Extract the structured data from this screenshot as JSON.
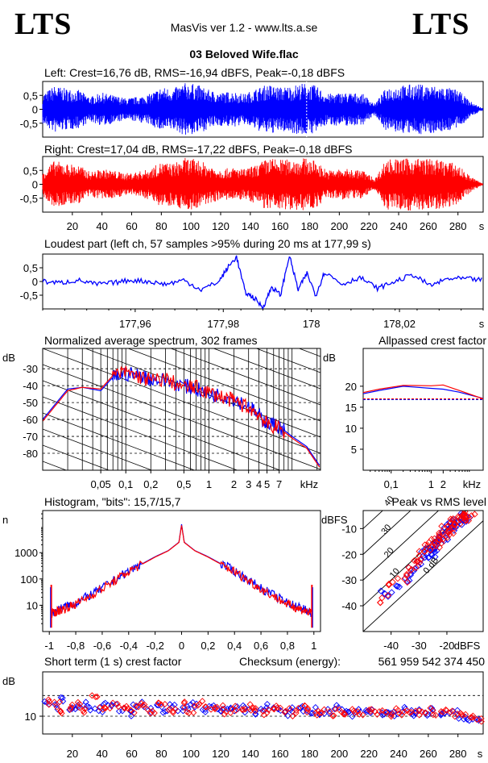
{
  "header": {
    "logo_left": "LTS",
    "logo_right": "LTS",
    "app_title": "MasVis ver 1.2 - www.lts.a.se",
    "file_title": "03 Beloved Wife.flac"
  },
  "colors": {
    "left": "#0000ff",
    "right": "#ff0000",
    "axis": "#000000"
  },
  "chart_data": [
    {
      "id": "waveform-left",
      "type": "line",
      "title": "Left: Crest=16,76 dB, RMS=-16,94 dBFS, Peak=-0,18 dBFS",
      "ylim": [
        -1,
        1
      ],
      "y_ticks": [
        {
          "v": 0.5,
          "label": "0,5"
        },
        {
          "v": 0,
          "label": "0"
        },
        {
          "v": -0.5,
          "label": "-0,5"
        }
      ],
      "xlim": [
        0,
        297
      ],
      "envelope_seconds": [
        0,
        8,
        16,
        24,
        32,
        40,
        48,
        56,
        64,
        72,
        80,
        88,
        96,
        104,
        112,
        120,
        128,
        136,
        144,
        152,
        160,
        168,
        176,
        184,
        192,
        200,
        208,
        216,
        224,
        232,
        240,
        248,
        256,
        264,
        272,
        280,
        288,
        296
      ],
      "envelope_amplitude": [
        0.55,
        0.85,
        0.75,
        0.7,
        0.45,
        0.6,
        0.5,
        0.4,
        0.45,
        0.55,
        0.8,
        0.75,
        0.95,
        0.9,
        0.7,
        0.6,
        0.65,
        0.55,
        0.75,
        0.9,
        0.8,
        0.85,
        0.95,
        0.85,
        0.55,
        0.6,
        0.6,
        0.55,
        0.2,
        0.8,
        0.85,
        0.9,
        0.9,
        0.85,
        0.8,
        0.7,
        0.3,
        0.05
      ]
    },
    {
      "id": "waveform-right",
      "type": "line",
      "title": "Right: Crest=17,04 dB, RMS=-17,22 dBFS, Peak=-0,18 dBFS",
      "ylim": [
        -1,
        1
      ],
      "y_ticks": [
        {
          "v": 0.5,
          "label": "0,5"
        },
        {
          "v": 0,
          "label": "0"
        },
        {
          "v": -0.5,
          "label": "-0,5"
        }
      ],
      "xlim": [
        0,
        297
      ],
      "x_ticks": [
        20,
        40,
        60,
        80,
        100,
        120,
        140,
        160,
        180,
        200,
        220,
        240,
        260,
        280
      ],
      "x_unit": "s",
      "envelope_seconds": [
        0,
        8,
        16,
        24,
        32,
        40,
        48,
        56,
        64,
        72,
        80,
        88,
        96,
        104,
        112,
        120,
        128,
        136,
        144,
        152,
        160,
        168,
        176,
        184,
        192,
        200,
        208,
        216,
        224,
        232,
        240,
        248,
        256,
        264,
        272,
        280,
        288,
        296
      ],
      "envelope_amplitude": [
        0.5,
        0.85,
        0.75,
        0.7,
        0.45,
        0.55,
        0.5,
        0.4,
        0.45,
        0.55,
        0.8,
        0.75,
        0.95,
        0.9,
        0.7,
        0.55,
        0.6,
        0.55,
        0.7,
        0.95,
        0.9,
        0.9,
        0.95,
        0.85,
        0.5,
        0.55,
        0.55,
        0.5,
        0.2,
        0.95,
        0.9,
        0.95,
        0.95,
        0.9,
        0.85,
        0.7,
        0.3,
        0.05
      ]
    },
    {
      "id": "loudest-part",
      "type": "line",
      "title": "Loudest part (left  ch, 57 samples >95% during 20 ms at 177,99 s)",
      "ylim": [
        -1,
        1
      ],
      "y_ticks": [
        {
          "v": 0.5,
          "label": "0,5"
        },
        {
          "v": 0,
          "label": "0"
        },
        {
          "v": -0.5,
          "label": "-0,5"
        }
      ],
      "xlim": [
        177.939,
        178.039
      ],
      "x_ticks": [
        {
          "v": 177.96,
          "label": "177,96"
        },
        {
          "v": 177.98,
          "label": "177,98"
        },
        {
          "v": 178,
          "label": "178"
        },
        {
          "v": 178.02,
          "label": "178,02"
        }
      ],
      "x_unit": "s",
      "x": [
        177.939,
        177.943,
        177.947,
        177.951,
        177.955,
        177.959,
        177.963,
        177.967,
        177.971,
        177.975,
        177.979,
        177.981,
        177.983,
        177.985,
        177.987,
        177.989,
        177.991,
        177.993,
        177.995,
        177.997,
        177.999,
        178.001,
        178.003,
        178.007,
        178.011,
        178.015,
        178.019,
        178.023,
        178.027,
        178.031,
        178.035,
        178.039
      ],
      "y": [
        0.0,
        -0.05,
        0.05,
        -0.1,
        -0.05,
        0.05,
        0.0,
        -0.1,
        0.05,
        -0.3,
        0.0,
        0.5,
        0.9,
        -0.4,
        -0.6,
        -0.95,
        -0.2,
        -0.5,
        0.95,
        -0.3,
        0.3,
        -0.5,
        0.35,
        -0.1,
        0.15,
        -0.25,
        0.0,
        0.25,
        -0.15,
        0.1,
        0.1,
        0.05
      ]
    },
    {
      "id": "avg-spectrum",
      "type": "line",
      "title": "Normalized average spectrum, 302 frames",
      "ylabel": "dB",
      "ylim": [
        -90,
        -18
      ],
      "y_ticks": [
        -30,
        -40,
        -50,
        -60,
        -70,
        -80
      ],
      "xlim": [
        0.01,
        22
      ],
      "x_log": true,
      "x_ticks": [
        {
          "v": 0.05,
          "label": "0,05"
        },
        {
          "v": 0.1,
          "label": "0,1"
        },
        {
          "v": 0.2,
          "label": "0,2"
        },
        {
          "v": 0.5,
          "label": "0,5"
        },
        {
          "v": 1,
          "label": "1"
        },
        {
          "v": 2,
          "label": "2"
        },
        {
          "v": 3,
          "label": "3"
        },
        {
          "v": 4,
          "label": "4"
        },
        {
          "v": 5,
          "label": "5"
        },
        {
          "v": 7,
          "label": "7"
        }
      ],
      "x_unit": "kHz",
      "x": [
        0.01,
        0.02,
        0.03,
        0.05,
        0.07,
        0.1,
        0.15,
        0.2,
        0.3,
        0.5,
        0.7,
        1,
        1.5,
        2,
        3,
        4,
        5,
        7,
        10,
        15,
        22
      ],
      "series": [
        {
          "name": "",
          "color_key": "left",
          "values": [
            -60,
            -42,
            -41,
            -43,
            -35,
            -33,
            -34,
            -36,
            -37,
            -40,
            -42,
            -45,
            -46,
            -48,
            -52,
            -58,
            -62,
            -64,
            -70,
            -76,
            -88
          ]
        },
        {
          "name": "",
          "color_key": "right",
          "values": [
            -61,
            -43,
            -41,
            -42,
            -34,
            -32,
            -35,
            -37,
            -36,
            -41,
            -41,
            -44,
            -47,
            -49,
            -53,
            -57,
            -63,
            -65,
            -71,
            -77,
            -89
          ]
        }
      ]
    },
    {
      "id": "allpassed-crest",
      "type": "line",
      "title": "Allpassed crest factor",
      "ylabel": "dB",
      "ylim": [
        0,
        29
      ],
      "y_ticks": [
        20,
        15,
        10,
        5
      ],
      "xlim": [
        0.02,
        20
      ],
      "x_log": true,
      "x_ticks": [
        {
          "v": 0.1,
          "label": "0,1"
        },
        {
          "v": 1,
          "label": "1"
        },
        {
          "v": 2,
          "label": "2"
        }
      ],
      "x_unit": "kHz",
      "dashed_levels": {
        "left": 16.8,
        "right": 17.0
      },
      "x": [
        0.02,
        0.05,
        0.2,
        1,
        2,
        5,
        20
      ],
      "series": [
        {
          "name": "",
          "color_key": "left",
          "values": [
            18.2,
            19.0,
            20.0,
            19.5,
            19.3,
            18.6,
            17.1
          ]
        },
        {
          "name": "",
          "color_key": "right",
          "values": [
            18.5,
            19.3,
            20.2,
            20.1,
            20.3,
            19.0,
            17.0
          ]
        }
      ]
    },
    {
      "id": "histogram",
      "type": "line",
      "title": "Histogram, \"bits\": 15,7/15,7",
      "ylabel": "n",
      "y_log": true,
      "ylim": [
        1,
        40000
      ],
      "y_ticks": [
        {
          "v": 1000,
          "label": "1000"
        },
        {
          "v": 100,
          "label": "100"
        },
        {
          "v": 10,
          "label": "10"
        }
      ],
      "xlim": [
        -1.05,
        1.05
      ],
      "x_ticks": [
        {
          "v": -1,
          "label": "-1"
        },
        {
          "v": -0.8,
          "label": "-0,8"
        },
        {
          "v": -0.6,
          "label": "-0,6"
        },
        {
          "v": -0.4,
          "label": "-0,4"
        },
        {
          "v": -0.2,
          "label": "-0,2"
        },
        {
          "v": 0,
          "label": "0"
        },
        {
          "v": 0.2,
          "label": "0,2"
        },
        {
          "v": 0.4,
          "label": "0,4"
        },
        {
          "v": 0.6,
          "label": "0,6"
        },
        {
          "v": 0.8,
          "label": "0,8"
        },
        {
          "v": 1,
          "label": "1"
        }
      ],
      "x": [
        -0.98,
        -0.9,
        -0.8,
        -0.6,
        -0.4,
        -0.2,
        -0.1,
        -0.02,
        0,
        0.02,
        0.1,
        0.2,
        0.4,
        0.6,
        0.8,
        0.9,
        0.98
      ],
      "series": [
        {
          "name": "",
          "color_key": "left",
          "values": [
            5,
            8,
            12,
            45,
            200,
            700,
            1200,
            2500,
            12000,
            2500,
            1200,
            700,
            200,
            45,
            12,
            8,
            5
          ]
        },
        {
          "name": "",
          "color_key": "right",
          "values": [
            5,
            7,
            11,
            42,
            190,
            680,
            1180,
            2450,
            11000,
            2450,
            1180,
            680,
            190,
            42,
            11,
            7,
            5
          ]
        }
      ],
      "edge_spikes": {
        "left_value": 60,
        "right_value": 60
      }
    },
    {
      "id": "peak-vs-rms",
      "type": "scatter",
      "title": "Peak vs RMS level",
      "ylabel": "dBFS",
      "xlabel": "dBFS",
      "xlim": [
        -50,
        -7
      ],
      "ylim": [
        -50,
        -3
      ],
      "x_ticks": [
        -40,
        -30,
        -20
      ],
      "y_ticks": [
        -10,
        -20,
        -30,
        -40
      ],
      "crest_lines": [
        {
          "v": 0,
          "label": "0 dB"
        },
        {
          "v": 10,
          "label": "10"
        },
        {
          "v": 20,
          "label": "20"
        },
        {
          "v": 30,
          "label": "30"
        },
        {
          "v": 40,
          "label": "40"
        }
      ],
      "series": [
        {
          "name": "",
          "color_key": "left",
          "x": [
            -42,
            -38,
            -35,
            -32,
            -30,
            -28,
            -27,
            -26,
            -25,
            -24,
            -23,
            -22,
            -21,
            -20,
            -19,
            -18,
            -17,
            -16,
            -15,
            -14,
            -13
          ],
          "y": [
            -36,
            -33,
            -29,
            -26,
            -24,
            -21,
            -20,
            -19,
            -18,
            -16,
            -15,
            -14,
            -13,
            -11,
            -10,
            -9,
            -8,
            -7,
            -7,
            -6,
            -5
          ]
        },
        {
          "name": "",
          "color_key": "right",
          "x": [
            -43,
            -39,
            -36,
            -33,
            -31,
            -29,
            -27,
            -25,
            -24,
            -23,
            -22,
            -21,
            -20,
            -19,
            -18,
            -17,
            -16,
            -15,
            -14,
            -13,
            -12
          ],
          "y": [
            -37,
            -31,
            -29,
            -25,
            -22,
            -20,
            -18,
            -17,
            -16,
            -14,
            -13,
            -12,
            -11,
            -10,
            -9,
            -8,
            -7,
            -6,
            -6,
            -5,
            -5
          ]
        }
      ]
    },
    {
      "id": "short-term-crest",
      "type": "scatter",
      "title": "Short term (1 s) crest factor",
      "checksum_label": "Checksum (energy):",
      "checksum_value": "561 959 542 374 450",
      "ylabel": "dB",
      "ylim": [
        4,
        25
      ],
      "y_ticks": [
        {
          "v": 10,
          "label": "10"
        }
      ],
      "dashed_levels": [
        10,
        17
      ],
      "xlim": [
        0,
        297
      ],
      "x_ticks": [
        20,
        40,
        60,
        80,
        100,
        120,
        140,
        160,
        180,
        200,
        220,
        240,
        260,
        280
      ],
      "x_unit": "s",
      "x": [
        3,
        8,
        13,
        18,
        23,
        28,
        33,
        38,
        43,
        48,
        53,
        58,
        63,
        68,
        73,
        78,
        83,
        88,
        93,
        98,
        103,
        108,
        113,
        118,
        123,
        128,
        133,
        138,
        143,
        148,
        153,
        158,
        163,
        168,
        173,
        178,
        183,
        188,
        193,
        198,
        203,
        208,
        213,
        218,
        223,
        228,
        233,
        238,
        243,
        248,
        253,
        258,
        263,
        268,
        273,
        278,
        283,
        288,
        293
      ],
      "series": [
        {
          "name": "",
          "color_key": "left",
          "values": [
            14,
            13,
            16,
            12,
            13,
            14,
            13,
            12,
            14,
            13,
            12,
            11,
            13,
            14,
            12,
            13,
            12,
            13,
            12,
            13,
            14,
            12,
            13,
            12,
            13,
            12,
            13,
            12,
            11,
            12,
            13,
            12,
            11,
            12,
            13,
            12,
            12,
            11,
            12,
            13,
            12,
            11,
            12,
            11,
            12,
            11,
            12,
            11,
            12,
            11,
            12,
            11,
            12,
            11,
            12,
            11,
            10,
            9,
            8
          ]
        },
        {
          "name": "",
          "color_key": "right",
          "values": [
            15,
            14,
            12,
            13,
            14,
            12,
            16,
            13,
            12,
            14,
            13,
            12,
            14,
            13,
            12,
            14,
            13,
            12,
            14,
            12,
            13,
            14,
            12,
            13,
            11,
            13,
            12,
            13,
            12,
            11,
            12,
            13,
            12,
            11,
            13,
            12,
            11,
            12,
            11,
            12,
            11,
            12,
            11,
            12,
            11,
            12,
            11,
            12,
            11,
            12,
            11,
            12,
            11,
            12,
            11,
            10,
            11,
            10,
            9
          ]
        }
      ]
    }
  ]
}
